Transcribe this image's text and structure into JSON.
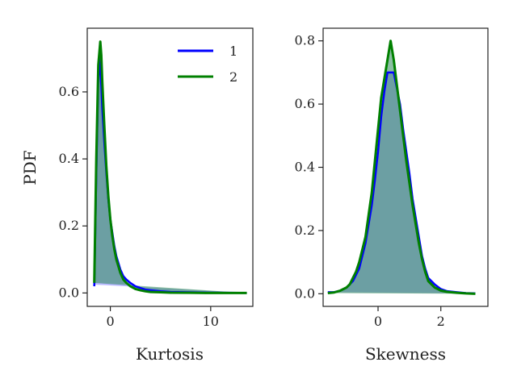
{
  "chart_data": [
    {
      "type": "area",
      "xlabel": "Kurtosis",
      "ylabel": "PDF",
      "xlim": [
        -2.3,
        14.2
      ],
      "ylim": [
        -0.04,
        0.79
      ],
      "xticks": [
        0,
        10
      ],
      "xtick_labels": [
        "0",
        "10"
      ],
      "yticks": [
        0.0,
        0.2,
        0.4,
        0.6
      ],
      "ytick_labels": [
        "0.0",
        "0.2",
        "0.4",
        "0.6"
      ],
      "legend_position": "top-right",
      "series": [
        {
          "name": "1",
          "color": "#0000ff",
          "x": [
            -1.6,
            -1.4,
            -1.2,
            -1.1,
            -1.0,
            -0.9,
            -0.8,
            -0.6,
            -0.4,
            -0.2,
            0.0,
            0.2,
            0.4,
            0.6,
            0.8,
            1.0,
            1.3,
            1.6,
            2.0,
            2.5,
            3.0,
            3.5,
            4.0,
            5.0,
            6.0,
            8.0,
            10.0,
            12.0,
            13.6
          ],
          "y": [
            0.02,
            0.35,
            0.64,
            0.7,
            0.66,
            0.62,
            0.55,
            0.45,
            0.36,
            0.28,
            0.22,
            0.18,
            0.14,
            0.11,
            0.09,
            0.07,
            0.05,
            0.04,
            0.03,
            0.02,
            0.015,
            0.01,
            0.008,
            0.005,
            0.003,
            0.002,
            0.001,
            0.0005,
            0.0
          ],
          "fill_color": "#8080ff",
          "fill_baseline": [
            [
              -1.6,
              0.025
            ],
            [
              13.6,
              0.0
            ]
          ]
        },
        {
          "name": "2",
          "color": "#008000",
          "x": [
            -1.6,
            -1.4,
            -1.2,
            -1.0,
            -0.9,
            -0.8,
            -0.6,
            -0.4,
            -0.2,
            0.0,
            0.2,
            0.4,
            0.6,
            0.8,
            1.0,
            1.3,
            1.6,
            2.0,
            2.5,
            3.0,
            3.5,
            4.0,
            5.0,
            6.0,
            8.0,
            10.0,
            12.0,
            13.6
          ],
          "y": [
            0.03,
            0.4,
            0.68,
            0.75,
            0.71,
            0.63,
            0.5,
            0.38,
            0.29,
            0.22,
            0.17,
            0.13,
            0.1,
            0.08,
            0.06,
            0.04,
            0.03,
            0.02,
            0.012,
            0.008,
            0.005,
            0.003,
            0.002,
            0.001,
            0.0005,
            0.0,
            0.0,
            0.0
          ],
          "fill_color": "#2e8b57",
          "fill_baseline": [
            [
              -1.6,
              0.03
            ],
            [
              13.6,
              0.0
            ]
          ]
        }
      ],
      "legend": {
        "entries": [
          "1",
          "2"
        ]
      }
    },
    {
      "type": "area",
      "xlabel": "Skewness",
      "ylabel": "",
      "xlim": [
        -1.75,
        3.5
      ],
      "ylim": [
        -0.04,
        0.84
      ],
      "xticks": [
        0,
        2
      ],
      "xtick_labels": [
        "0",
        "2"
      ],
      "yticks": [
        0.0,
        0.2,
        0.4,
        0.6,
        0.8
      ],
      "ytick_labels": [
        "0.0",
        "0.2",
        "0.4",
        "0.6",
        "0.8"
      ],
      "series": [
        {
          "name": "1",
          "color": "#0000ff",
          "x": [
            -1.6,
            -1.4,
            -1.2,
            -1.0,
            -0.9,
            -0.8,
            -0.7,
            -0.6,
            -0.5,
            -0.4,
            -0.3,
            -0.2,
            -0.1,
            0.0,
            0.1,
            0.2,
            0.3,
            0.4,
            0.5,
            0.6,
            0.7,
            0.8,
            0.9,
            1.0,
            1.1,
            1.2,
            1.3,
            1.4,
            1.5,
            1.6,
            1.8,
            2.0,
            2.2,
            2.5,
            2.8,
            3.1
          ],
          "y": [
            0.005,
            0.005,
            0.01,
            0.02,
            0.03,
            0.04,
            0.06,
            0.08,
            0.12,
            0.16,
            0.22,
            0.28,
            0.36,
            0.45,
            0.56,
            0.64,
            0.7,
            0.7,
            0.7,
            0.65,
            0.6,
            0.52,
            0.45,
            0.38,
            0.3,
            0.24,
            0.18,
            0.12,
            0.08,
            0.05,
            0.03,
            0.015,
            0.008,
            0.005,
            0.002,
            0.001
          ],
          "fill_color": "#8080ff",
          "fill_baseline": [
            [
              -1.6,
              0.005
            ],
            [
              3.1,
              0.001
            ]
          ]
        },
        {
          "name": "2",
          "color": "#008000",
          "x": [
            -1.6,
            -1.4,
            -1.2,
            -1.0,
            -0.9,
            -0.8,
            -0.7,
            -0.6,
            -0.5,
            -0.4,
            -0.3,
            -0.2,
            -0.1,
            0.0,
            0.1,
            0.2,
            0.3,
            0.4,
            0.5,
            0.6,
            0.7,
            0.8,
            0.9,
            1.0,
            1.1,
            1.2,
            1.3,
            1.4,
            1.5,
            1.6,
            1.8,
            2.0,
            2.2,
            2.5,
            2.8,
            3.1
          ],
          "y": [
            0.002,
            0.004,
            0.01,
            0.02,
            0.03,
            0.05,
            0.07,
            0.1,
            0.14,
            0.18,
            0.25,
            0.32,
            0.42,
            0.52,
            0.62,
            0.68,
            0.74,
            0.8,
            0.74,
            0.66,
            0.58,
            0.5,
            0.42,
            0.35,
            0.28,
            0.22,
            0.16,
            0.11,
            0.07,
            0.04,
            0.02,
            0.01,
            0.006,
            0.003,
            0.001,
            0.0
          ],
          "fill_color": "#2e8b57",
          "fill_baseline": [
            [
              -1.6,
              0.002
            ],
            [
              3.1,
              0.0
            ]
          ]
        }
      ]
    }
  ]
}
